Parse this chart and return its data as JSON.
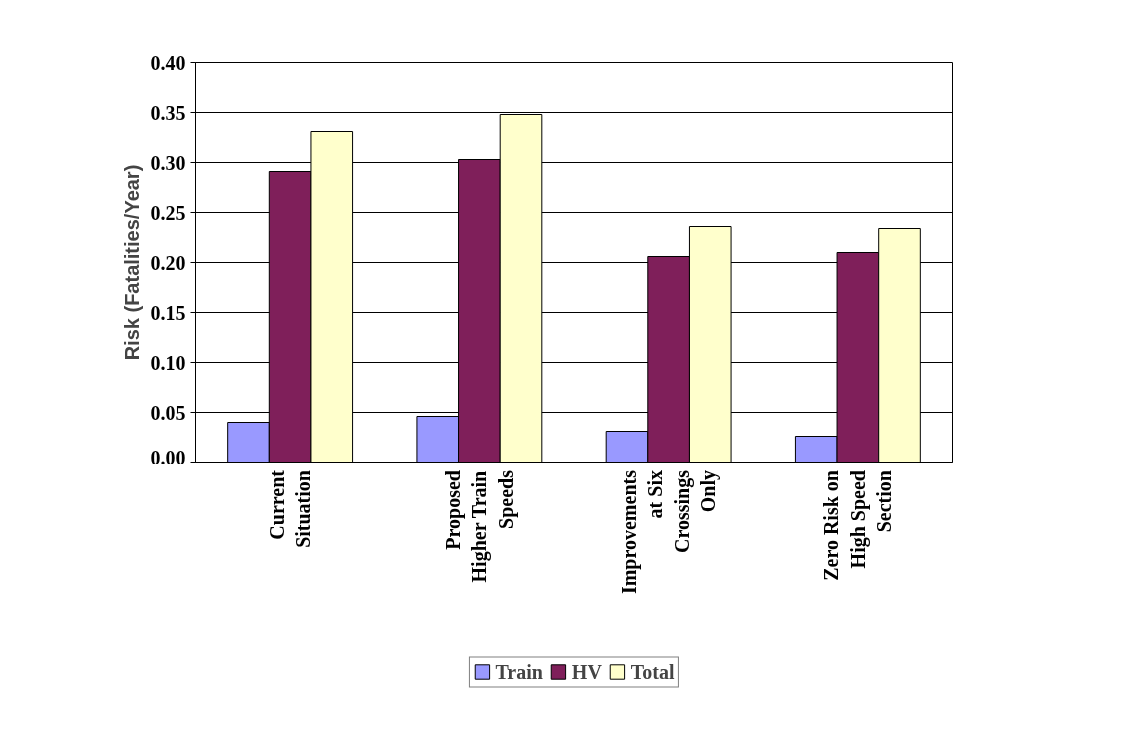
{
  "chart_data": {
    "type": "bar",
    "ylabel": "Risk (Fatalities/Year)",
    "categories": [
      "Current Situation",
      "Proposed Higher Train Speeds",
      "Improvements at Six Crossings Only",
      "Zero Risk on High Speed Section"
    ],
    "series": [
      {
        "name": "Train",
        "color": "#9999ff",
        "values": [
          0.04,
          0.046,
          0.031,
          0.026
        ]
      },
      {
        "name": "HV",
        "color": "#7f1f5a",
        "values": [
          0.291,
          0.303,
          0.206,
          0.21
        ]
      },
      {
        "name": "Total",
        "color": "#ffffcc",
        "values": [
          0.331,
          0.348,
          0.236,
          0.234
        ]
      }
    ],
    "ylim": [
      0,
      0.4
    ],
    "yticks": [
      {
        "value": 0,
        "label": "0.00"
      },
      {
        "value": 0.05,
        "label": "0.05"
      },
      {
        "value": 0.1,
        "label": "0.10"
      },
      {
        "value": 0.15,
        "label": "0.15"
      },
      {
        "value": 0.2,
        "label": "0.20"
      },
      {
        "value": 0.25,
        "label": "0.25"
      },
      {
        "value": 0.3,
        "label": "0.30"
      },
      {
        "value": 0.35,
        "label": "0.35"
      },
      {
        "value": 0.4,
        "label": "0.40"
      }
    ],
    "grid": "y",
    "legend": "bottom"
  }
}
